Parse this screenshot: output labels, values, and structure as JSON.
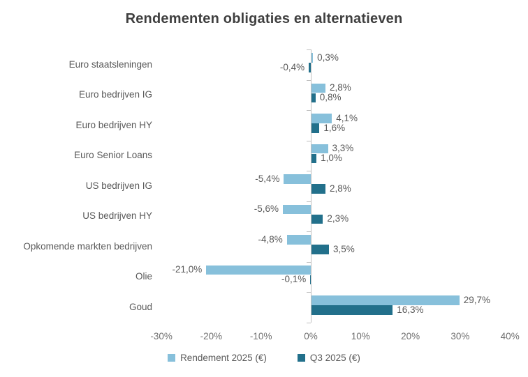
{
  "chart_data": {
    "type": "bar",
    "orientation": "horizontal",
    "title": "Rendementen obligaties en alternatieven",
    "categories": [
      "Euro staatsleningen",
      "Euro bedrijven IG",
      "Euro bedrijven HY",
      "Euro Senior Loans",
      "US bedrijven IG",
      "US bedrijven HY",
      "Opkomende markten bedrijven",
      "Olie",
      "Goud"
    ],
    "series": [
      {
        "name": "Rendement 2025 (€)",
        "color": "#87C0DB",
        "values": [
          0.3,
          2.8,
          4.1,
          3.3,
          -5.4,
          -5.6,
          -4.8,
          -21.0,
          29.7
        ],
        "labels": [
          "0,3%",
          "2,8%",
          "4,1%",
          "3,3%",
          "-5,4%",
          "-5,6%",
          "-4,8%",
          "-21,0%",
          "29,7%"
        ]
      },
      {
        "name": "Q3 2025 (€)",
        "color": "#22708B",
        "values": [
          -0.4,
          0.8,
          1.6,
          1.0,
          2.8,
          2.3,
          3.5,
          -0.1,
          16.3
        ],
        "labels": [
          "-0,4%",
          "0,8%",
          "1,6%",
          "1,0%",
          "2,8%",
          "2,3%",
          "3,5%",
          "-0,1%",
          "16,3%"
        ]
      }
    ],
    "x_ticks": [
      "-30%",
      "-20%",
      "-10%",
      "0%",
      "10%",
      "20%",
      "30%",
      "40%"
    ],
    "xlim": [
      -30,
      40
    ],
    "grid": false,
    "legend_position": "bottom",
    "colors": {
      "axis": "#bfbfbf",
      "labels": "#595959",
      "tick_labels": "#6f6f6f",
      "title": "#3f3f3f"
    }
  }
}
